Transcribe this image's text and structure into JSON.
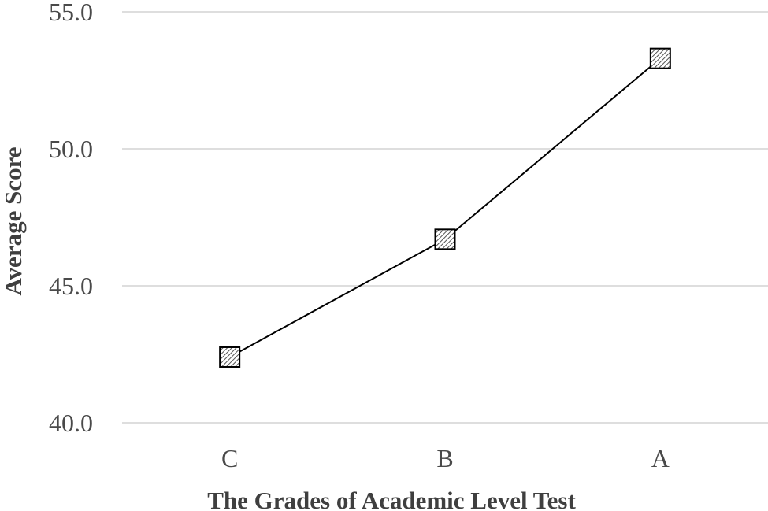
{
  "chart_data": {
    "type": "line",
    "categories": [
      "C",
      "B",
      "A"
    ],
    "series": [
      {
        "values": [
          42.4,
          46.7,
          53.3
        ]
      }
    ],
    "xlabel": "The Grades of Academic Level Test",
    "ylabel": "Average Score",
    "ylim": [
      40.0,
      55.0
    ],
    "yticks": [
      "40.0",
      "45.0",
      "50.0",
      "55.0"
    ],
    "grid": true,
    "marker": "hatched-square",
    "colors": {
      "line": "#000000",
      "grid": "#d4d4d4",
      "text": "#4a4a4a",
      "marker_edge": "#000000",
      "marker_fill": "#ffffff",
      "marker_hatch": "#555555"
    }
  }
}
